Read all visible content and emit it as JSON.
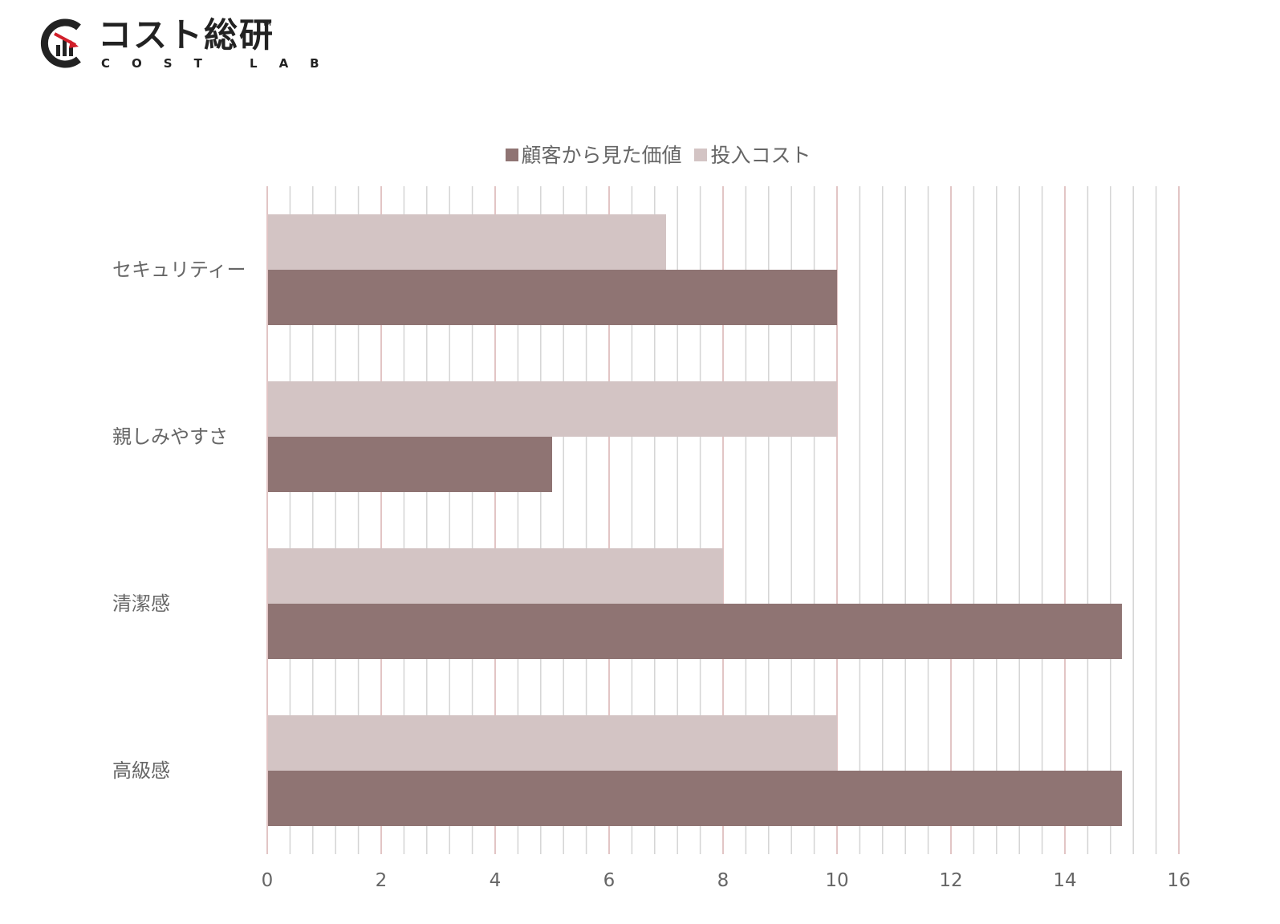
{
  "logo": {
    "name": "コスト総研",
    "tm": "™",
    "sub": "COST LAB"
  },
  "chart_data": {
    "type": "bar",
    "orientation": "horizontal",
    "categories": [
      "セキュリティー",
      "親しみやすさ",
      "清潔感",
      "高級感"
    ],
    "series": [
      {
        "name": "顧客から見た価値",
        "values": [
          10,
          5,
          15,
          15
        ],
        "color": "#8f7473"
      },
      {
        "name": "投入コスト",
        "values": [
          7,
          10,
          8,
          10
        ],
        "color": "#d3c4c4"
      }
    ],
    "xlim": [
      0,
      16
    ],
    "xticks": [
      "0",
      "2",
      "4",
      "6",
      "8",
      "10",
      "12",
      "14",
      "16"
    ],
    "grid": true,
    "legend_position": "top"
  }
}
